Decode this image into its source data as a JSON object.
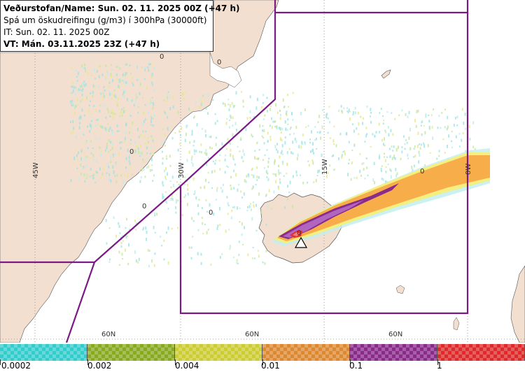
{
  "header": {
    "line1": "Veðurstofan/Name: Sun. 02. 11. 2025 00Z (+47 h)",
    "line2": "Spá um öskudreifingu (g/m3) í 300hPa (30000ft)",
    "line3": "IT: Sun. 02. 11. 2025 00Z",
    "line4": "VT: Mán. 03.11.2025 23Z (+47 h)"
  },
  "map": {
    "longitude_labels": [
      "45W",
      "30W",
      "15W",
      "0W"
    ],
    "latitude_labels": [
      "60N",
      "60N",
      "60N"
    ],
    "contour_labels": [
      "0",
      "0",
      "0",
      "0",
      "0",
      "0",
      "0"
    ],
    "colors": {
      "sea": "#ffffff",
      "land": "#f3dfd0",
      "boundary": "#7a1a84",
      "grid": "#888888"
    }
  },
  "legend": {
    "swatches": [
      {
        "color": "#33cccc"
      },
      {
        "color": "#88aa22"
      },
      {
        "color": "#cccc33"
      },
      {
        "color": "#dd8833"
      },
      {
        "color": "#8a2a8a"
      },
      {
        "color": "#dd2a2a"
      }
    ],
    "labels": [
      "0.0002",
      "0.002",
      "0.004",
      "0.01",
      "0.1",
      "1"
    ]
  }
}
